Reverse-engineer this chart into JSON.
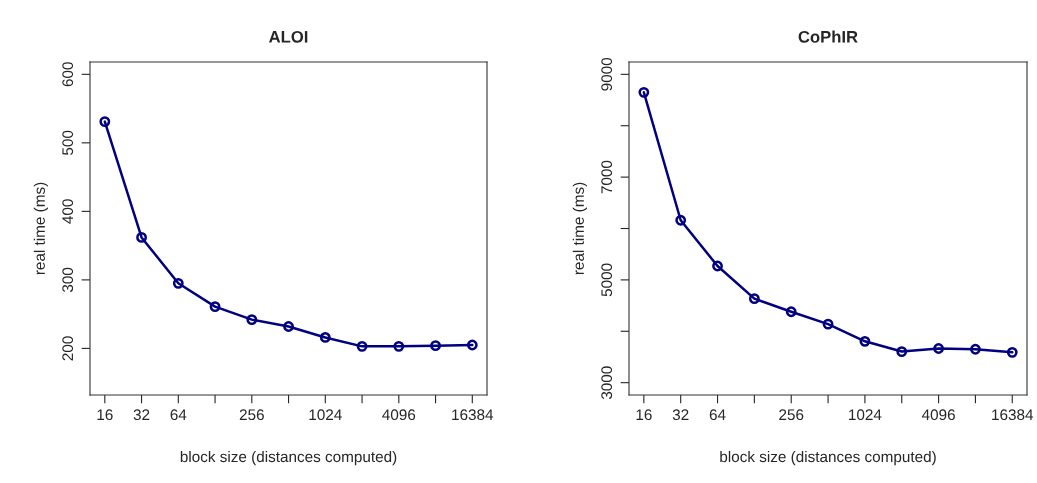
{
  "chart_data": [
    {
      "type": "line",
      "title": "ALOI",
      "xlabel": "block size (distances computed)",
      "ylabel": "real time (ms)",
      "log": "x",
      "x": [
        16,
        32,
        64,
        128,
        256,
        512,
        1024,
        2048,
        4096,
        8192,
        16384
      ],
      "series": [
        {
          "color": "#000080",
          "values": [
            531,
            362,
            295,
            261,
            242,
            232,
            216,
            203,
            203,
            204,
            205
          ]
        }
      ],
      "xlim": [
        12.1,
        21619
      ],
      "xticks": [
        16,
        32,
        64,
        {
          "value": 128,
          "label": null
        },
        256,
        {
          "value": 512,
          "label": null
        },
        1024,
        {
          "value": 2048,
          "label": null
        },
        4096,
        {
          "value": 8192,
          "label": null
        },
        16384
      ],
      "ylim": [
        132,
        618
      ],
      "yticks": [
        200,
        300,
        400,
        500,
        600
      ],
      "grid": false,
      "marker": "circle",
      "line_style": "solid"
    },
    {
      "type": "line",
      "title": "CoPhIR",
      "xlabel": "block size (distances computed)",
      "ylabel": "real time (ms)",
      "log": "x",
      "x": [
        16,
        32,
        64,
        128,
        256,
        512,
        1024,
        2048,
        4096,
        8192,
        16384
      ],
      "series": [
        {
          "color": "#000080",
          "values": [
            8650,
            6160,
            5270,
            4635,
            4380,
            4140,
            3805,
            3605,
            3665,
            3650,
            3590
          ]
        }
      ],
      "xlim": [
        12.1,
        21619
      ],
      "xticks": [
        16,
        32,
        64,
        {
          "value": 128,
          "label": null
        },
        256,
        {
          "value": 512,
          "label": null
        },
        1024,
        {
          "value": 2048,
          "label": null
        },
        4096,
        {
          "value": 8192,
          "label": null
        },
        16384
      ],
      "ylim": [
        2760,
        9240
      ],
      "yticks": [
        3000,
        {
          "value": 4000,
          "label": null
        },
        5000,
        {
          "value": 6000,
          "label": null
        },
        7000,
        {
          "value": 8000,
          "label": null
        },
        9000
      ],
      "grid": false,
      "marker": "circle",
      "line_style": "solid"
    }
  ]
}
